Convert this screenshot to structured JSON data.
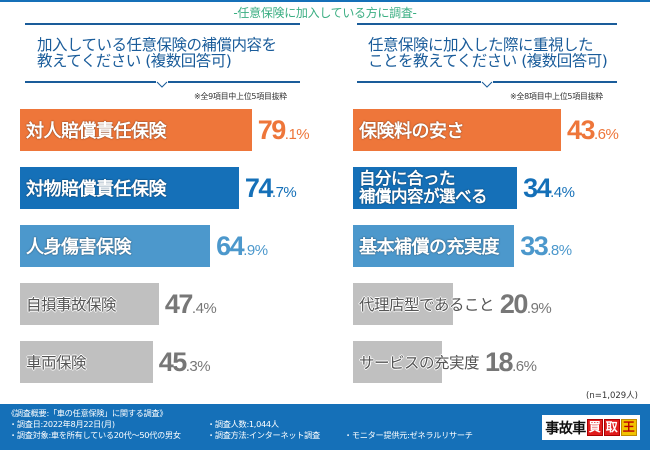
{
  "header": {
    "survey_subtitle": "-任意保険に加入している方に調査-"
  },
  "colors": {
    "orange": "#ee763a",
    "blue": "#1570b8",
    "light_blue": "#4c98cc",
    "gray": "#c0c0c0",
    "gray_text": "#777777",
    "title_blue": "#1a5c9a",
    "green": "#3aae82"
  },
  "chart_data": [
    {
      "type": "bar",
      "orientation": "horizontal",
      "title": "加入している任意保険の補償内容を\n教えてください (複数回答可)",
      "note": "※全9項目中上位5項目抜粋",
      "unit": "%",
      "categories": [
        "対人賠償責任保険",
        "対物賠償責任保険",
        "人身傷害保険",
        "自損事故保険",
        "車両保険"
      ],
      "values": [
        79.1,
        74.7,
        64.9,
        47.4,
        45.3
      ],
      "bar_colors": [
        "orange",
        "blue",
        "light_blue",
        "gray",
        "gray"
      ],
      "xlim": [
        0,
        100
      ]
    },
    {
      "type": "bar",
      "orientation": "horizontal",
      "title": "任意保険に加入した際に重視した\nことを教えてください (複数回答可)",
      "note": "※全8項目中上位5項目抜粋",
      "unit": "%",
      "categories": [
        "保険料の安さ",
        "自分に合った\n補償内容が選べる",
        "基本補償の充実度",
        "代理店型であること",
        "サービスの充実度"
      ],
      "values": [
        43.6,
        34.4,
        33.8,
        20.9,
        18.6
      ],
      "bar_colors": [
        "orange",
        "blue",
        "light_blue",
        "gray",
        "gray"
      ],
      "xlim": [
        0,
        60
      ],
      "sample_size": "(n=1,029人)"
    }
  ],
  "footer": {
    "overview": "《調査概要:「車の任意保険」に関する調査》",
    "date": "・調査日:2022年8月22日(月)",
    "respondents": "・調査人数:1,044人",
    "target": "・調査対象:車を所有している20代〜50代の男女",
    "method": "・調査方法:インターネット調査",
    "provider": "・モニター提供元:ゼネラルリサーチ",
    "logo": {
      "part1": "事故車",
      "part2a": "買",
      "part2b": "取",
      "part3": "王"
    }
  }
}
